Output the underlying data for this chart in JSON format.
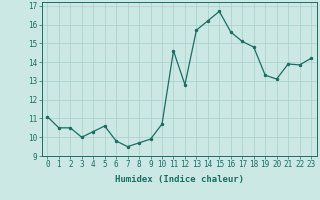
{
  "x": [
    0,
    1,
    2,
    3,
    4,
    5,
    6,
    7,
    8,
    9,
    10,
    11,
    12,
    13,
    14,
    15,
    16,
    17,
    18,
    19,
    20,
    21,
    22,
    23
  ],
  "y": [
    11.1,
    10.5,
    10.5,
    10.0,
    10.3,
    10.6,
    9.8,
    9.5,
    9.7,
    9.9,
    10.7,
    14.6,
    12.8,
    15.7,
    16.2,
    16.7,
    15.6,
    15.1,
    14.8,
    13.3,
    13.1,
    13.9,
    13.85,
    14.2
  ],
  "xlabel": "Humidex (Indice chaleur)",
  "ylim": [
    9,
    17
  ],
  "xlim_min": -0.5,
  "xlim_max": 23.5,
  "yticks": [
    9,
    10,
    11,
    12,
    13,
    14,
    15,
    16,
    17
  ],
  "xticks": [
    0,
    1,
    2,
    3,
    4,
    5,
    6,
    7,
    8,
    9,
    10,
    11,
    12,
    13,
    14,
    15,
    16,
    17,
    18,
    19,
    20,
    21,
    22,
    23
  ],
  "line_color": "#1a6e62",
  "marker_color": "#1a6e62",
  "bg_color": "#cce8e5",
  "grid_color": "#a8cfcb",
  "axis_color": "#1a6e62",
  "label_fontsize": 6.5,
  "tick_fontsize": 5.5
}
